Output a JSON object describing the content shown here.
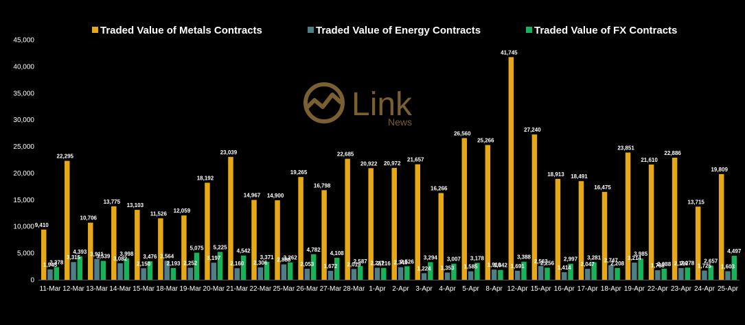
{
  "watermark": {
    "brand": "Link",
    "sub": "News",
    "color": "#7a5f32"
  },
  "chart_data": {
    "type": "bar",
    "title": "",
    "xlabel": "",
    "ylabel": "",
    "ylim": [
      0,
      45000
    ],
    "yticks": [
      "0",
      "5,000",
      "10,000",
      "15,000",
      "20,000",
      "25,000",
      "30,000",
      "35,000",
      "40,000",
      "45,000"
    ],
    "grid": false,
    "legend": "top",
    "categories": [
      "11-Mar",
      "12-Mar",
      "13-Mar",
      "14-Mar",
      "15-Mar",
      "18-Mar",
      "19-Mar",
      "20-Mar",
      "21-Mar",
      "22-Mar",
      "25-Mar",
      "26-Mar",
      "27-Mar",
      "28-Mar",
      "1-Apr",
      "2-Apr",
      "3-Apr",
      "4-Apr",
      "5-Apr",
      "8-Apr",
      "12-Apr",
      "15-Apr",
      "16-Apr",
      "17-Apr",
      "18-Apr",
      "19-Apr",
      "22-Apr",
      "23-Apr",
      "24-Apr",
      "25-Apr"
    ],
    "series": [
      {
        "name": "Traded Value of Metals Contracts",
        "color": "#e6a817",
        "values": [
          9410,
          22295,
          10706,
          13775,
          13103,
          11526,
          12059,
          18192,
          23039,
          14967,
          14900,
          19265,
          16798,
          22685,
          20922,
          20972,
          21657,
          16266,
          26560,
          25266,
          41745,
          27240,
          18913,
          18491,
          16475,
          23851,
          21610,
          22886,
          13715,
          19809
        ],
        "labels": [
          "9,410",
          "22,295",
          "10,706",
          "13,775",
          "13,103",
          "11,526",
          "12,059",
          "18,192",
          "23,039",
          "14,967",
          "14,900",
          "19,265",
          "16,798",
          "22,685",
          "20,922",
          "20,972",
          "21,657",
          "16,266",
          "26,560",
          "25,266",
          "41,745",
          "27,240",
          "18,913",
          "18,491",
          "16,475",
          "23,851",
          "21,610",
          "22,886",
          "13,715",
          "19,809"
        ]
      },
      {
        "name": "Traded Value of Energy Contracts",
        "color": "#4e7f86",
        "values": [
          1945,
          3315,
          3911,
          3082,
          2150,
          3564,
          2252,
          3197,
          2160,
          2306,
          2888,
          2053,
          1672,
          2019,
          2247,
          2349,
          1224,
          1353,
          1585,
          1910,
          1691,
          2563,
          1414,
          2047,
          2747,
          3214,
          1788,
          2190,
          1725,
          1603
        ],
        "labels": [
          "1,945",
          "3,315",
          "3,911",
          "3,082",
          "2,150",
          "3,564",
          "2,252",
          "3,197",
          "2,160",
          "2,306",
          "2,888",
          "2,053",
          "1,672",
          "2,019",
          "2,247",
          "2,349",
          "1,224",
          "1,353",
          "1,585",
          "1,910",
          "1,691",
          "2,563",
          "1,414",
          "2,047",
          "2,747",
          "3,214",
          "1,788",
          "2,190",
          "1,725",
          "1,603"
        ]
      },
      {
        "name": "Traded Value of FX Contracts",
        "color": "#17b25a",
        "values": [
          2378,
          4393,
          3539,
          3998,
          3476,
          2193,
          5075,
          5225,
          4542,
          3371,
          3262,
          4782,
          4108,
          2587,
          2216,
          2526,
          3294,
          3007,
          3178,
          1842,
          3388,
          2256,
          2997,
          3281,
          2208,
          3985,
          2088,
          2278,
          2657,
          4497
        ],
        "labels": [
          "2,378",
          "4,393",
          "3,539",
          "3,998",
          "3,476",
          "2,193",
          "5,075",
          "5,225",
          "4,542",
          "3,371",
          "3,262",
          "4,782",
          "4,108",
          "2,587",
          "2,216",
          "2,526",
          "3,294",
          "3,007",
          "3,178",
          "1,842",
          "3,388",
          "2,256",
          "2,997",
          "3,281",
          "2,208",
          "3,985",
          "2,088",
          "2,278",
          "2,657",
          "4,497"
        ]
      }
    ]
  }
}
